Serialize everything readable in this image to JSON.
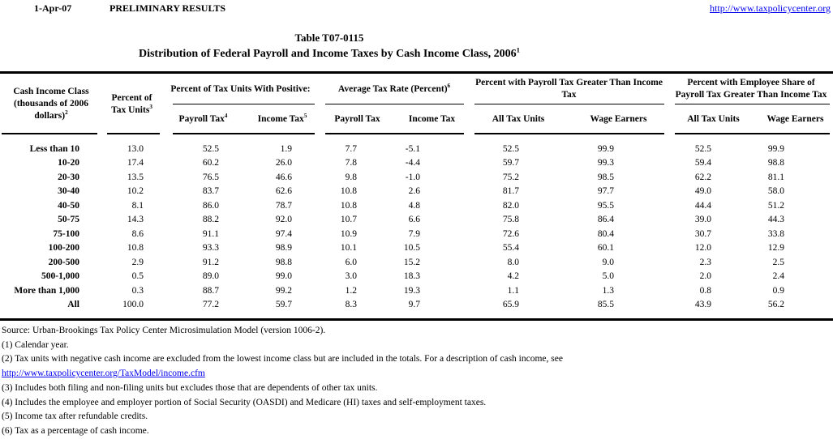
{
  "header": {
    "date": "1-Apr-07",
    "status": "PRELIMINARY RESULTS",
    "site_url": "http://www.taxpolicycenter.org"
  },
  "title": {
    "line1": "Table T07-0115",
    "line2": "Distribution of Federal Payroll and Income Taxes by Cash Income Class, 2006",
    "line2_footnote_ref": "1"
  },
  "table": {
    "row_header": {
      "text": "Cash Income Class (thousands of 2006 dollars)",
      "footnote_ref": "2"
    },
    "col_percent_units": {
      "text": "Percent of Tax Units",
      "footnote_ref": "3"
    },
    "groups": [
      {
        "label": "Percent of Tax Units With Positive:",
        "footnote_ref": "",
        "columns": [
          {
            "text": "Payroll Tax",
            "footnote_ref": "4"
          },
          {
            "text": "Income Tax",
            "footnote_ref": "5"
          }
        ]
      },
      {
        "label": "Average Tax Rate (Percent)",
        "footnote_ref": "6",
        "columns": [
          {
            "text": "Payroll Tax",
            "footnote_ref": ""
          },
          {
            "text": "Income Tax",
            "footnote_ref": ""
          }
        ]
      },
      {
        "label": "Percent with Payroll Tax Greater Than Income Tax",
        "footnote_ref": "",
        "columns": [
          {
            "text": "All Tax Units",
            "footnote_ref": ""
          },
          {
            "text": "Wage Earners",
            "footnote_ref": ""
          }
        ]
      },
      {
        "label": "Percent with Employee Share of Payroll Tax Greater Than Income Tax",
        "footnote_ref": "",
        "columns": [
          {
            "text": "All Tax Units",
            "footnote_ref": ""
          },
          {
            "text": "Wage Earners",
            "footnote_ref": ""
          }
        ]
      }
    ],
    "rows": [
      {
        "label": "Less than 10",
        "values": [
          "13.0",
          "52.5",
          "1.9",
          "7.7",
          "-5.1",
          "52.5",
          "99.9",
          "52.5",
          "99.9"
        ]
      },
      {
        "label": "10-20",
        "values": [
          "17.4",
          "60.2",
          "26.0",
          "7.8",
          "-4.4",
          "59.7",
          "99.3",
          "59.4",
          "98.8"
        ]
      },
      {
        "label": "20-30",
        "values": [
          "13.5",
          "76.5",
          "46.6",
          "9.8",
          "-1.0",
          "75.2",
          "98.5",
          "62.2",
          "81.1"
        ]
      },
      {
        "label": "30-40",
        "values": [
          "10.2",
          "83.7",
          "62.6",
          "10.8",
          "2.6",
          "81.7",
          "97.7",
          "49.0",
          "58.0"
        ]
      },
      {
        "label": "40-50",
        "values": [
          "8.1",
          "86.0",
          "78.7",
          "10.8",
          "4.8",
          "82.0",
          "95.5",
          "44.4",
          "51.2"
        ]
      },
      {
        "label": "50-75",
        "values": [
          "14.3",
          "88.2",
          "92.0",
          "10.7",
          "6.6",
          "75.8",
          "86.4",
          "39.0",
          "44.3"
        ]
      },
      {
        "label": "75-100",
        "values": [
          "8.6",
          "91.1",
          "97.4",
          "10.9",
          "7.9",
          "72.6",
          "80.4",
          "30.7",
          "33.8"
        ]
      },
      {
        "label": "100-200",
        "values": [
          "10.8",
          "93.3",
          "98.9",
          "10.1",
          "10.5",
          "55.4",
          "60.1",
          "12.0",
          "12.9"
        ]
      },
      {
        "label": "200-500",
        "values": [
          "2.9",
          "91.2",
          "98.8",
          "6.0",
          "15.2",
          "8.0",
          "9.0",
          "2.3",
          "2.5"
        ]
      },
      {
        "label": "500-1,000",
        "values": [
          "0.5",
          "89.0",
          "99.0",
          "3.0",
          "18.3",
          "4.2",
          "5.0",
          "2.0",
          "2.4"
        ]
      },
      {
        "label": "More than 1,000",
        "values": [
          "0.3",
          "88.7",
          "99.2",
          "1.2",
          "19.3",
          "1.1",
          "1.3",
          "0.8",
          "0.9"
        ]
      },
      {
        "label": "All",
        "values": [
          "100.0",
          "77.2",
          "59.7",
          "8.3",
          "9.7",
          "65.9",
          "85.5",
          "43.9",
          "56.2"
        ]
      }
    ]
  },
  "footer": {
    "source": "Source: Urban-Brookings Tax Policy Center Microsimulation Model (version 1006-2).",
    "note1": "(1) Calendar year.",
    "note2": "(2) Tax units with negative cash income are excluded from the lowest income class but are included in the totals. For a description of cash income, see",
    "income_link": "http://www.taxpolicycenter.org/TaxModel/income.cfm",
    "note3": "(3) Includes both filing and non-filing units but excludes those that are dependents of other tax units.",
    "note4": "(4) Includes the employee and employer portion of Social Security (OASDI) and Medicare (HI) taxes and self-employment taxes.",
    "note5": "(5) Income tax after refundable credits.",
    "note6": "(6) Tax as a percentage of cash income."
  }
}
